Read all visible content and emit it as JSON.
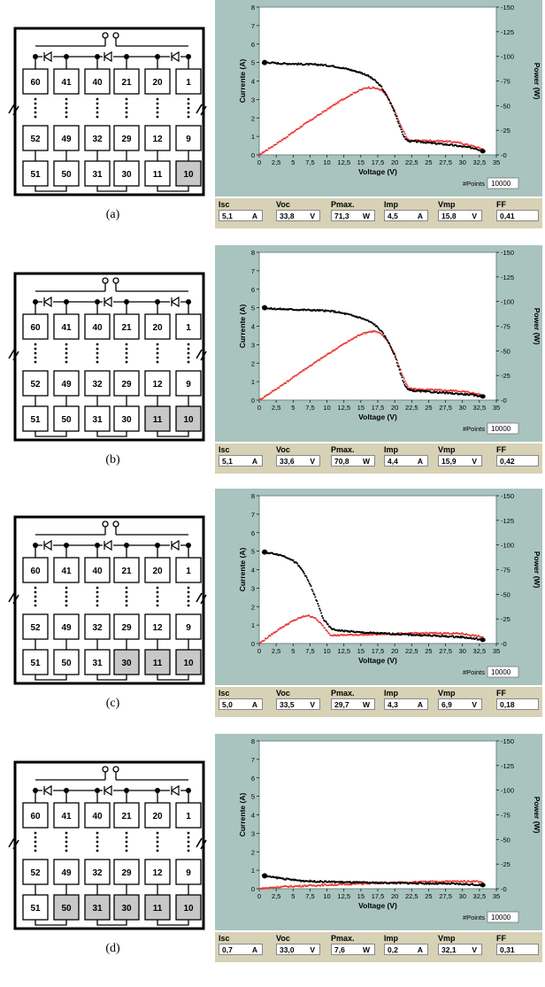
{
  "panels": [
    {
      "caption": "(a)",
      "shaded": [
        "10"
      ],
      "readout": [
        {
          "label": "Isc",
          "value": "5,1",
          "unit": "A"
        },
        {
          "label": "Voc",
          "value": "33,8",
          "unit": "V"
        },
        {
          "label": "Pmax.",
          "value": "71,3",
          "unit": "W"
        },
        {
          "label": "Imp",
          "value": "4,5",
          "unit": "A"
        },
        {
          "label": "Vmp",
          "value": "15,8",
          "unit": "V"
        },
        {
          "label": "FF",
          "value": "0,41",
          "unit": ""
        }
      ]
    },
    {
      "caption": "(b)",
      "shaded": [
        "11",
        "10"
      ],
      "readout": [
        {
          "label": "Isc",
          "value": "5,1",
          "unit": "A"
        },
        {
          "label": "Voc",
          "value": "33,6",
          "unit": "V"
        },
        {
          "label": "Pmax.",
          "value": "70,8",
          "unit": "W"
        },
        {
          "label": "Imp",
          "value": "4,4",
          "unit": "A"
        },
        {
          "label": "Vmp",
          "value": "15,9",
          "unit": "V"
        },
        {
          "label": "FF",
          "value": "0,42",
          "unit": ""
        }
      ]
    },
    {
      "caption": "(c)",
      "shaded": [
        "30",
        "11",
        "10"
      ],
      "readout": [
        {
          "label": "Isc",
          "value": "5,0",
          "unit": "A"
        },
        {
          "label": "Voc",
          "value": "33,5",
          "unit": "V"
        },
        {
          "label": "Pmax.",
          "value": "29,7",
          "unit": "W"
        },
        {
          "label": "Imp",
          "value": "4,3",
          "unit": "A"
        },
        {
          "label": "Vmp",
          "value": "6,9",
          "unit": "V"
        },
        {
          "label": "FF",
          "value": "0,18",
          "unit": ""
        }
      ]
    },
    {
      "caption": "(d)",
      "shaded": [
        "50",
        "31",
        "30",
        "11",
        "10"
      ],
      "readout": [
        {
          "label": "Isc",
          "value": "0,7",
          "unit": "A"
        },
        {
          "label": "Voc",
          "value": "33,0",
          "unit": "V"
        },
        {
          "label": "Pmax.",
          "value": "7,6",
          "unit": "W"
        },
        {
          "label": "Imp",
          "value": "0,2",
          "unit": "A"
        },
        {
          "label": "Vmp",
          "value": "32,1",
          "unit": "V"
        },
        {
          "label": "FF",
          "value": "0,31",
          "unit": ""
        }
      ]
    }
  ],
  "diagram": {
    "top_row": [
      "60",
      "41",
      "40",
      "21",
      "20",
      "1"
    ],
    "mid_row": [
      "52",
      "49",
      "32",
      "29",
      "12",
      "9"
    ],
    "bot_row": [
      "51",
      "50",
      "31",
      "30",
      "11",
      "10"
    ]
  },
  "colors": {
    "plot_bg": "#ffffff",
    "frame_bg": "#a9c4bf",
    "current_series": "#000000",
    "power_series": "#e8322f",
    "shaded_cell": "#c8c8c8",
    "readout_bg": "#d7d1b6"
  },
  "chart_common": {
    "xlabel": "Voltage (V)",
    "ylabel_left": "Currente (A)",
    "ylabel_right": "Power (W)",
    "x_ticks": [
      "0",
      "2,5",
      "5",
      "7,5",
      "10",
      "12,5",
      "15",
      "17,5",
      "20",
      "22,5",
      "25",
      "27,5",
      "30",
      "32,5",
      "35"
    ],
    "y_left_ticks": [
      "0",
      "1",
      "2",
      "3",
      "4",
      "5",
      "6",
      "7",
      "8"
    ],
    "y_right_ticks": [
      "0",
      "25",
      "50",
      "75",
      "100",
      "125",
      "150"
    ],
    "points_label": "#Points",
    "points_value": "10000",
    "xlim": [
      0,
      35
    ],
    "ylim_left": [
      0,
      8
    ],
    "ylim_right": [
      0,
      150
    ]
  },
  "chart_data": [
    {
      "type": "scatter",
      "series": [
        {
          "values_x": [
            0.5,
            1.0,
            1.5,
            3,
            5,
            7,
            9,
            11,
            13,
            14,
            15,
            16,
            17,
            18,
            19,
            20,
            21,
            21.5,
            22,
            24,
            26,
            28,
            30,
            32,
            33
          ],
          "values_y": [
            5.0,
            5.0,
            5.0,
            4.95,
            4.93,
            4.9,
            4.88,
            4.8,
            4.65,
            4.55,
            4.45,
            4.3,
            4.05,
            3.7,
            3.1,
            2.3,
            1.3,
            0.9,
            0.75,
            0.7,
            0.62,
            0.55,
            0.45,
            0.35,
            0.2
          ]
        },
        {
          "values_x": [
            0,
            2,
            4,
            6,
            8,
            10,
            12,
            14,
            15,
            16,
            17,
            18,
            19,
            20,
            21,
            22,
            23,
            25,
            27,
            29,
            31,
            33
          ],
          "values_y": [
            0,
            9,
            18,
            28,
            37,
            46,
            55,
            63,
            66,
            68.5,
            68,
            66,
            58,
            45,
            28,
            15,
            14.5,
            14.5,
            14,
            13,
            10,
            6
          ]
        }
      ]
    },
    {
      "type": "scatter",
      "series": [
        {
          "values_x": [
            0.5,
            1.0,
            1.5,
            3,
            5,
            7,
            9,
            11,
            13,
            15,
            16,
            17,
            18,
            19,
            20,
            21,
            21.5,
            22,
            23,
            25,
            27,
            29,
            31,
            33
          ],
          "values_y": [
            5.0,
            5.0,
            4.95,
            4.93,
            4.9,
            4.88,
            4.85,
            4.8,
            4.65,
            4.45,
            4.3,
            4.1,
            3.75,
            3.2,
            2.4,
            1.3,
            0.8,
            0.55,
            0.5,
            0.45,
            0.4,
            0.35,
            0.3,
            0.2
          ]
        },
        {
          "values_x": [
            0,
            2,
            4,
            6,
            8,
            10,
            12,
            14,
            15,
            16,
            17,
            18,
            19,
            20,
            21,
            22,
            23,
            25,
            27,
            29,
            31,
            33
          ],
          "values_y": [
            0,
            9,
            18,
            28,
            37,
            46,
            55,
            63,
            67,
            69,
            70,
            67,
            60,
            47,
            28,
            12,
            11,
            10.5,
            10,
            9.5,
            8,
            5
          ]
        }
      ]
    },
    {
      "type": "scatter",
      "series": [
        {
          "values_x": [
            0.5,
            1.0,
            1.5,
            2.5,
            3.5,
            4.5,
            5.5,
            6.5,
            7.5,
            8.5,
            9.5,
            10.5,
            11,
            12,
            15,
            18,
            21,
            24,
            27,
            30,
            33
          ],
          "values_y": [
            4.95,
            4.93,
            4.9,
            4.85,
            4.75,
            4.6,
            4.35,
            3.9,
            3.2,
            2.3,
            1.3,
            0.85,
            0.75,
            0.7,
            0.6,
            0.55,
            0.5,
            0.45,
            0.4,
            0.35,
            0.2
          ]
        },
        {
          "values_x": [
            0,
            1,
            2,
            3,
            4,
            5,
            6,
            7,
            8,
            9,
            10,
            10.5,
            11,
            12,
            15,
            18,
            21,
            24,
            27,
            30,
            33
          ],
          "values_y": [
            0,
            5,
            10,
            15,
            19,
            23,
            26,
            28.5,
            27,
            21,
            13,
            9,
            8.3,
            8.5,
            9,
            9.5,
            10,
            10.5,
            10.5,
            10,
            6.5
          ]
        }
      ]
    },
    {
      "type": "scatter",
      "series": [
        {
          "values_x": [
            0.5,
            1,
            2,
            3,
            4,
            5,
            6,
            8,
            10,
            12,
            14,
            16,
            18,
            20,
            22,
            24,
            26,
            28,
            30,
            32,
            33
          ],
          "values_y": [
            0.7,
            0.68,
            0.62,
            0.58,
            0.52,
            0.48,
            0.44,
            0.4,
            0.38,
            0.36,
            0.34,
            0.33,
            0.32,
            0.31,
            0.3,
            0.29,
            0.28,
            0.27,
            0.25,
            0.22,
            0.2
          ]
        },
        {
          "values_x": [
            0,
            1,
            2,
            3,
            4,
            6,
            8,
            10,
            12,
            14,
            16,
            18,
            20,
            22,
            24,
            26,
            28,
            30,
            32,
            33
          ],
          "values_y": [
            0,
            0.7,
            1.3,
            1.8,
            2.2,
            2.8,
            3.3,
            3.8,
            4.3,
            4.9,
            5.3,
            5.8,
            6.3,
            6.6,
            7.0,
            7.2,
            7.4,
            7.5,
            7.6,
            6.5
          ]
        }
      ]
    }
  ]
}
